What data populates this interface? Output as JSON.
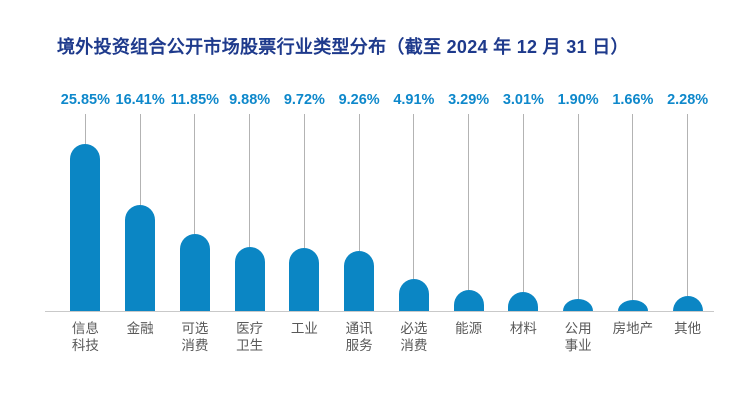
{
  "title": {
    "text": "境外投资组合公开市场股票行业类型分布（截至 2024 年 12 月 31 日）",
    "color": "#1e3a8c"
  },
  "chart_data": {
    "type": "bar",
    "title": "境外投资组合公开市场股票行业类型分布（截至 2024 年 12 月 31 日）",
    "categories": [
      "信息科技",
      "金融",
      "可选消费",
      "医疗卫生",
      "工业",
      "通讯服务",
      "必选消费",
      "能源",
      "材料",
      "公用事业",
      "房地产",
      "其他"
    ],
    "categories_display": [
      "信息\n科技",
      "金融",
      "可选\n消费",
      "医疗\n卫生",
      "工业",
      "通讯\n服务",
      "必选\n消费",
      "能源",
      "材料",
      "公用\n事业",
      "房地产",
      "其他"
    ],
    "values": [
      25.85,
      16.41,
      11.85,
      9.88,
      9.72,
      9.26,
      4.91,
      3.29,
      3.01,
      1.9,
      1.66,
      2.28
    ],
    "value_labels": [
      "25.85%",
      "16.41%",
      "11.85%",
      "9.88%",
      "9.72%",
      "9.26%",
      "4.91%",
      "3.29%",
      "3.01%",
      "1.90%",
      "1.66%",
      "2.28%"
    ],
    "unit": "%",
    "ylim": [
      0,
      26
    ],
    "xlabel": "",
    "ylabel": "",
    "grid": "off",
    "legend": "none",
    "bar_style": "rounded-top lollipop with leader line",
    "bar_color": "#0b86c4",
    "value_label_color": "#0e88cb",
    "category_label_color": "#595959",
    "leader_line_color": "#b3b3b3",
    "axis_line_color": "#c9c9c9",
    "title_color": "#1e3a8c",
    "background_color": "#ffffff"
  }
}
